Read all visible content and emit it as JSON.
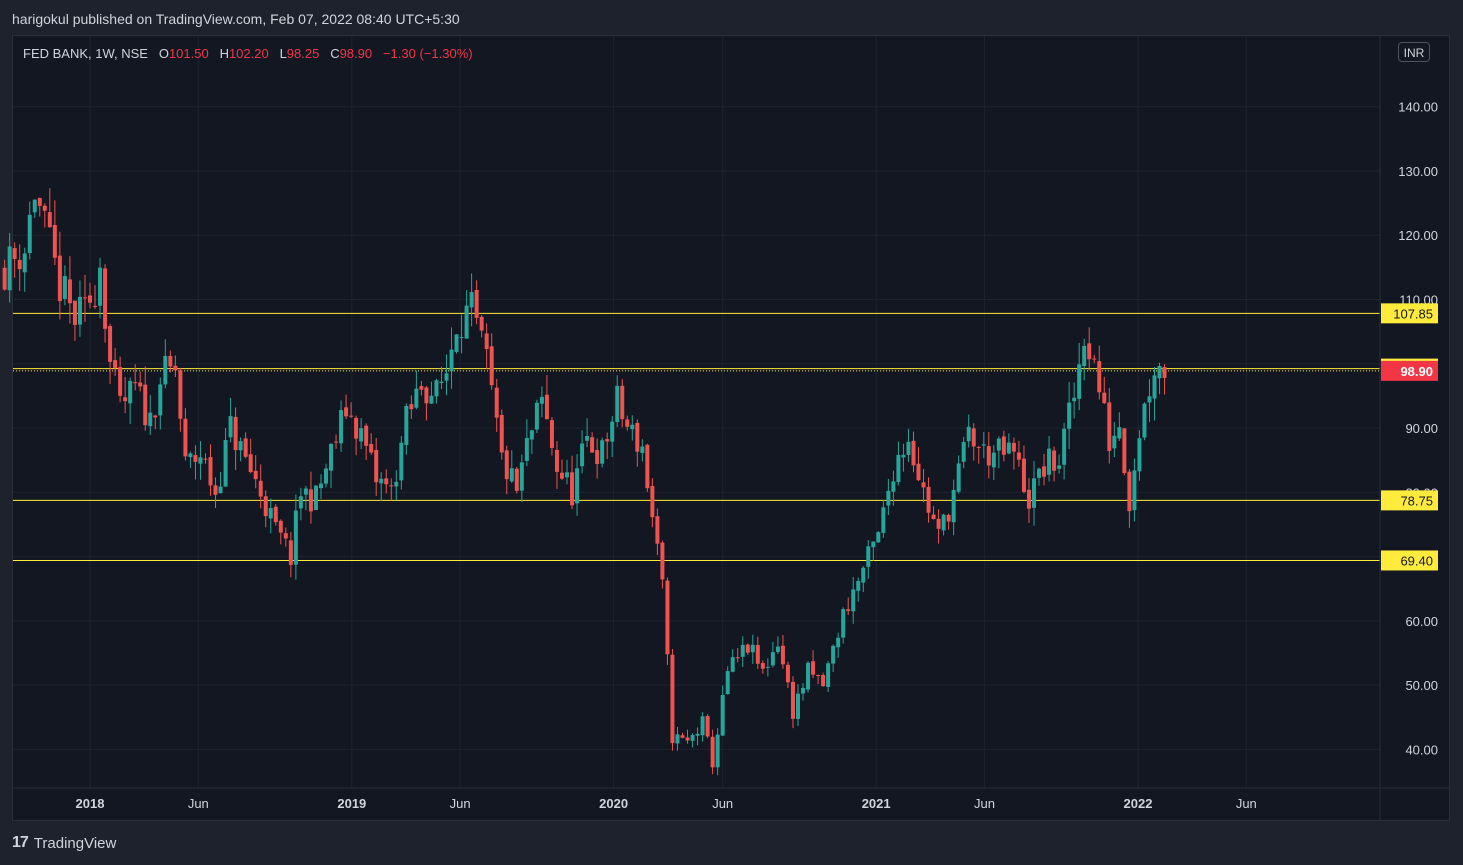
{
  "header": {
    "published_by": "harigokul published on TradingView.com, Feb 07, 2022 08:40 UTC+5:30"
  },
  "legend": {
    "symbol": "FED BANK, 1W, NSE",
    "o_label": "O",
    "o_value": "101.50",
    "h_label": "H",
    "h_value": "102.20",
    "l_label": "L",
    "l_value": "98.25",
    "c_label": "C",
    "c_value": "98.90",
    "change": "−1.30 (−1.30%)"
  },
  "currency": "INR",
  "footer": {
    "brand": "TradingView",
    "logo": "17"
  },
  "colors": {
    "up": "#26a69a",
    "down": "#ef5350",
    "level": "#ffeb3b",
    "last": "#f23645",
    "background": "#131722"
  },
  "chart_data": {
    "type": "candlestick",
    "title": "FED BANK, 1W, NSE",
    "ylim": [
      34,
      151
    ],
    "y_ticks": [
      {
        "value": 140,
        "label": "140.00"
      },
      {
        "value": 130,
        "label": "130.00"
      },
      {
        "value": 120,
        "label": "120.00"
      },
      {
        "value": 110,
        "label": "110.00"
      },
      {
        "value": 100,
        "label": "100.00"
      },
      {
        "value": 90,
        "label": "90.00"
      },
      {
        "value": 80,
        "label": "80.00"
      },
      {
        "value": 70,
        "label": "70.00"
      },
      {
        "value": 60,
        "label": "60.00"
      },
      {
        "value": 50,
        "label": "50.00"
      },
      {
        "value": 40,
        "label": "40.00"
      }
    ],
    "x_ticks": [
      {
        "date": "2018-01-01",
        "label": "2018"
      },
      {
        "date": "2018-06-01",
        "label": "Jun"
      },
      {
        "date": "2019-01-01",
        "label": "2019"
      },
      {
        "date": "2019-06-01",
        "label": "Jun"
      },
      {
        "date": "2020-01-01",
        "label": "2020"
      },
      {
        "date": "2020-06-01",
        "label": "Jun"
      },
      {
        "date": "2021-01-01",
        "label": "2021"
      },
      {
        "date": "2021-06-01",
        "label": "Jun"
      },
      {
        "date": "2022-01-01",
        "label": "2022"
      },
      {
        "date": "2022-06-01",
        "label": "Jun"
      }
    ],
    "horizontal_levels": [
      {
        "value": 107.85,
        "label": "107.85"
      },
      {
        "value": 99.25,
        "label": "99.25"
      },
      {
        "value": 78.75,
        "label": "78.75"
      },
      {
        "value": 69.4,
        "label": "69.40"
      }
    ],
    "last_price": {
      "value": 98.9,
      "label": "98.90"
    },
    "price_path": [
      [
        "2017-09-04",
        115
      ],
      [
        "2017-10-02",
        118
      ],
      [
        "2017-10-16",
        127
      ],
      [
        "2017-11-06",
        118
      ],
      [
        "2017-11-20",
        112
      ],
      [
        "2017-12-11",
        107
      ],
      [
        "2017-12-25",
        108
      ],
      [
        "2018-01-08",
        112
      ],
      [
        "2018-01-15",
        116
      ],
      [
        "2018-01-29",
        100
      ],
      [
        "2018-02-12",
        93
      ],
      [
        "2018-03-05",
        96
      ],
      [
        "2018-03-26",
        91
      ],
      [
        "2018-04-09",
        98
      ],
      [
        "2018-04-30",
        99
      ],
      [
        "2018-05-14",
        84
      ],
      [
        "2018-06-04",
        86
      ],
      [
        "2018-06-25",
        80
      ],
      [
        "2018-07-16",
        90
      ],
      [
        "2018-08-06",
        85
      ],
      [
        "2018-08-27",
        80
      ],
      [
        "2018-09-17",
        74
      ],
      [
        "2018-10-08",
        70
      ],
      [
        "2018-10-22",
        80
      ],
      [
        "2018-11-12",
        79
      ],
      [
        "2018-12-03",
        86
      ],
      [
        "2018-12-24",
        93
      ],
      [
        "2019-01-14",
        89
      ],
      [
        "2019-02-04",
        82
      ],
      [
        "2019-02-25",
        80
      ],
      [
        "2019-03-18",
        91
      ],
      [
        "2019-04-08",
        97
      ],
      [
        "2019-04-29",
        95
      ],
      [
        "2019-05-13",
        99
      ],
      [
        "2019-05-27",
        107
      ],
      [
        "2019-06-17",
        108
      ],
      [
        "2019-07-08",
        100
      ],
      [
        "2019-07-29",
        85
      ],
      [
        "2019-08-19",
        80
      ],
      [
        "2019-09-02",
        87
      ],
      [
        "2019-09-23",
        94
      ],
      [
        "2019-10-14",
        84
      ],
      [
        "2019-11-04",
        80
      ],
      [
        "2019-11-25",
        88
      ],
      [
        "2019-12-16",
        86
      ],
      [
        "2020-01-06",
        94
      ],
      [
        "2020-01-20",
        90
      ],
      [
        "2020-02-10",
        87
      ],
      [
        "2020-02-24",
        76
      ],
      [
        "2020-03-09",
        65
      ],
      [
        "2020-03-23",
        42
      ],
      [
        "2020-04-13",
        41
      ],
      [
        "2020-05-04",
        44
      ],
      [
        "2020-05-18",
        38
      ],
      [
        "2020-06-08",
        52
      ],
      [
        "2020-07-06",
        56
      ],
      [
        "2020-07-27",
        52
      ],
      [
        "2020-08-17",
        57
      ],
      [
        "2020-09-07",
        46
      ],
      [
        "2020-09-28",
        52
      ],
      [
        "2020-10-19",
        50
      ],
      [
        "2020-11-16",
        61
      ],
      [
        "2020-12-14",
        68
      ],
      [
        "2021-01-04",
        73
      ],
      [
        "2021-01-25",
        84
      ],
      [
        "2021-02-15",
        89
      ],
      [
        "2021-03-08",
        80
      ],
      [
        "2021-03-29",
        73
      ],
      [
        "2021-04-19",
        80
      ],
      [
        "2021-05-10",
        89
      ],
      [
        "2021-05-31",
        86
      ],
      [
        "2021-06-21",
        86
      ],
      [
        "2021-07-12",
        86
      ],
      [
        "2021-08-02",
        79
      ],
      [
        "2021-08-23",
        84
      ],
      [
        "2021-09-13",
        85
      ],
      [
        "2021-10-04",
        95
      ],
      [
        "2021-10-18",
        105
      ],
      [
        "2021-11-01",
        100
      ],
      [
        "2021-11-22",
        88
      ],
      [
        "2021-12-06",
        91
      ],
      [
        "2021-12-20",
        79
      ],
      [
        "2022-01-03",
        90
      ],
      [
        "2022-01-24",
        100
      ],
      [
        "2022-02-07",
        98.9
      ]
    ]
  }
}
